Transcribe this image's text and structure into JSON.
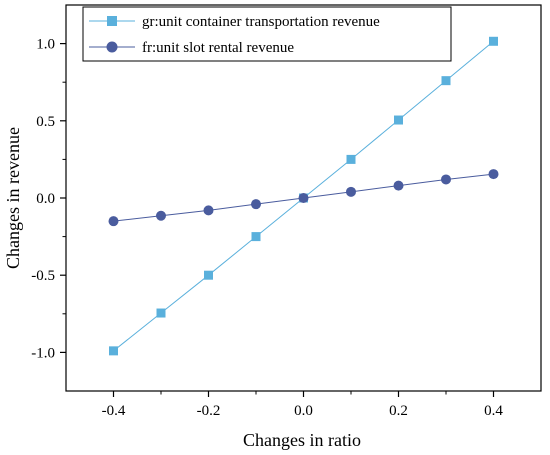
{
  "chart_data": {
    "type": "line",
    "title": "",
    "xlabel": "Changes in ratio",
    "ylabel": "Changes in revenue",
    "xlim": [
      -0.5,
      0.5
    ],
    "ylim": [
      -1.25,
      1.25
    ],
    "xticks": [
      -0.4,
      -0.2,
      0.0,
      0.2,
      0.4
    ],
    "xtick_labels": [
      "-0.4",
      "-0.2",
      "0.0",
      "0.2",
      "0.4"
    ],
    "yticks": [
      -1.0,
      -0.5,
      0.0,
      0.5,
      1.0
    ],
    "ytick_labels": [
      "-1.0",
      "-0.5",
      "0.0",
      "0.5",
      "1.0"
    ],
    "x": [
      -0.4,
      -0.3,
      -0.2,
      -0.1,
      0.0,
      0.1,
      0.2,
      0.3,
      0.4
    ],
    "series": [
      {
        "name": "gr:unit container transportation revenue",
        "color": "#5ab0dc",
        "marker": "square",
        "values": [
          -0.99,
          -0.745,
          -0.5,
          -0.25,
          0.0,
          0.25,
          0.505,
          0.76,
          1.015
        ]
      },
      {
        "name": "fr:unit slot rental revenue",
        "color": "#4a5c9e",
        "marker": "circle",
        "values": [
          -0.15,
          -0.115,
          -0.08,
          -0.04,
          0.0,
          0.04,
          0.08,
          0.12,
          0.155
        ]
      }
    ],
    "grid": false,
    "legend_position": "top-left"
  }
}
